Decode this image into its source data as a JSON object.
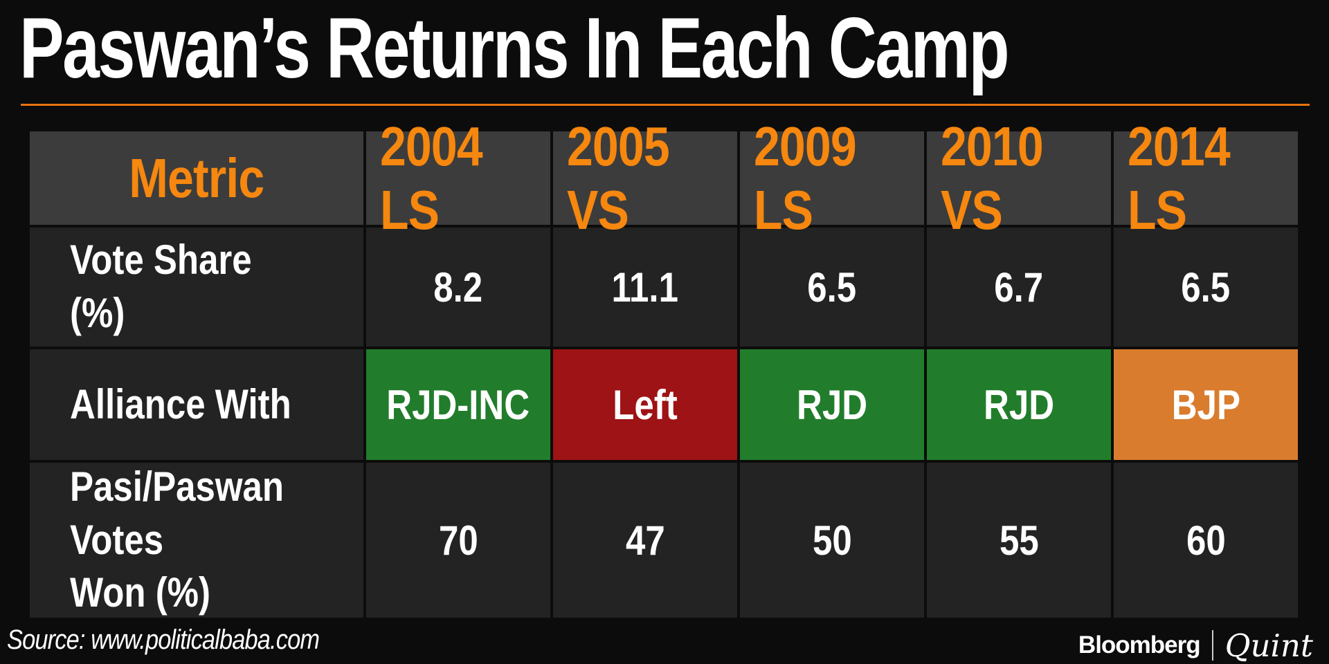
{
  "title": "Paswan’s Returns In Each Camp",
  "table": {
    "columns": [
      "Metric",
      "2004 LS",
      "2005 VS",
      "2009 LS",
      "2010 VS",
      "2014 LS"
    ],
    "rows": [
      {
        "label": "Vote Share (%)",
        "values": [
          "8.2",
          "11.1",
          "6.5",
          "6.7",
          "6.5"
        ]
      },
      {
        "label": "Alliance With",
        "values": [
          "RJD-INC",
          "Left",
          "RJD",
          "RJD",
          "BJP"
        ]
      },
      {
        "label": "Pasi/Paswan Votes\nWon (%)",
        "values": [
          "70",
          "47",
          "50",
          "55",
          "60"
        ]
      }
    ],
    "alliance_cell_styles": [
      "background:#217d2b",
      "background:#9e1315",
      "background:#217d2b",
      "background:#217d2b",
      "background:#d97c2e"
    ]
  },
  "footer": {
    "source": "Source: www.politicalbaba.com",
    "brand_left": "Bloomberg",
    "brand_right": "Quint"
  },
  "colors": {
    "accent_orange_text": "#f6870f",
    "rule_orange": "#e8730f",
    "header_cell_bg": "#3c3c3c",
    "body_cell_bg": "#232323",
    "alliance_green": "#217d2b",
    "alliance_red": "#9e1315",
    "alliance_orange": "#d97c2e",
    "background": "#0c0c0c"
  },
  "chart_data": {
    "type": "table",
    "title": "Paswan’s Returns In Each Camp",
    "columns": [
      "Metric",
      "2004 LS",
      "2005 VS",
      "2009 LS",
      "2010 VS",
      "2014 LS"
    ],
    "rows": [
      {
        "metric": "Vote Share (%)",
        "values": [
          8.2,
          11.1,
          6.5,
          6.7,
          6.5
        ]
      },
      {
        "metric": "Alliance With",
        "values": [
          "RJD-INC",
          "Left",
          "RJD",
          "RJD",
          "BJP"
        ],
        "highlight_colors": [
          "green",
          "red",
          "green",
          "green",
          "orange"
        ]
      },
      {
        "metric": "Pasi/Paswan Votes Won (%)",
        "values": [
          70,
          47,
          50,
          55,
          60
        ]
      }
    ],
    "source": "Source: www.politicalbaba.com",
    "legend_position": "none",
    "grid": false
  }
}
